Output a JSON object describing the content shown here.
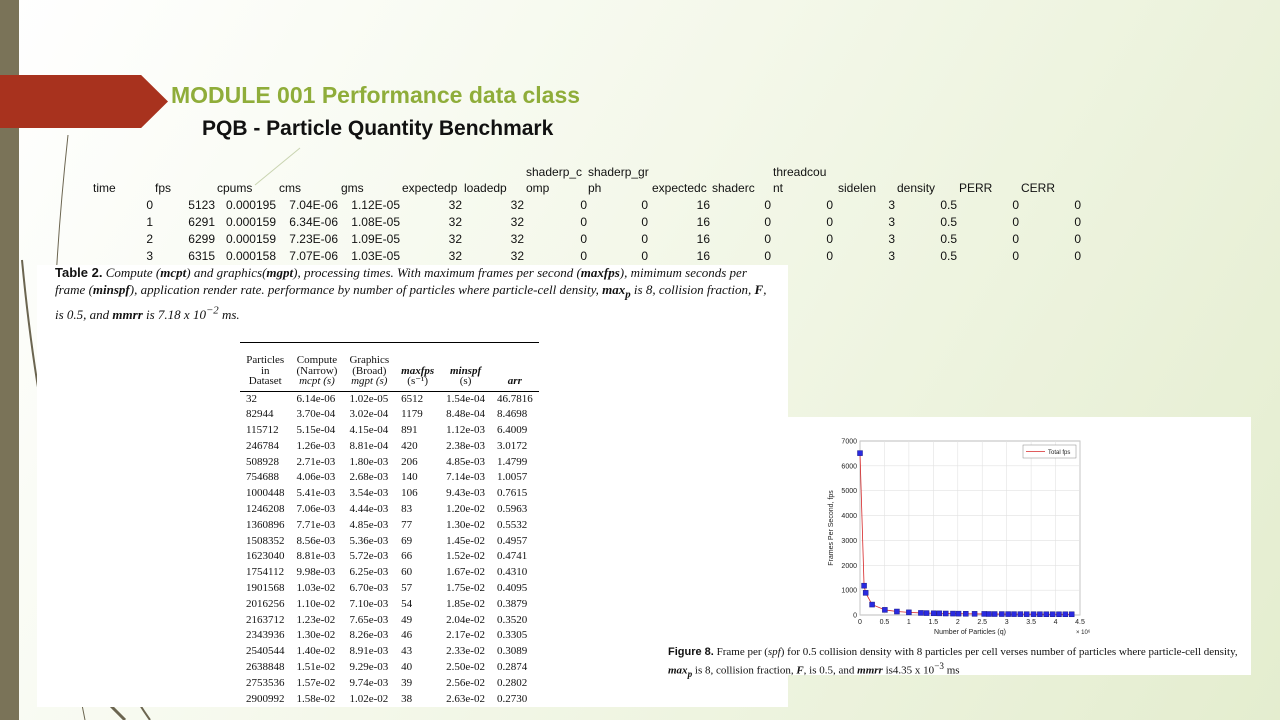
{
  "slide": {
    "title": "MODULE 001 Performance data class",
    "subtitle": "PQB - Particle Quantity Benchmark"
  },
  "grid": {
    "headers": [
      {
        "top": "",
        "bottom": "time"
      },
      {
        "top": "",
        "bottom": "fps"
      },
      {
        "top": "",
        "bottom": "cpums"
      },
      {
        "top": "",
        "bottom": "cms"
      },
      {
        "top": "",
        "bottom": "gms"
      },
      {
        "top": "",
        "bottom": "expectedp"
      },
      {
        "top": "",
        "bottom": "loadedp"
      },
      {
        "top": "shaderp_c",
        "bottom": "omp"
      },
      {
        "top": "shaderp_gr",
        "bottom": "ph"
      },
      {
        "top": "",
        "bottom": "expectedc"
      },
      {
        "top": "",
        "bottom": "shaderc"
      },
      {
        "top": "threadcou",
        "bottom": "nt"
      },
      {
        "top": "",
        "bottom": "sidelen"
      },
      {
        "top": "",
        "bottom": "density"
      },
      {
        "top": "",
        "bottom": "PERR"
      },
      {
        "top": "",
        "bottom": "CERR"
      }
    ],
    "rows": [
      [
        "0",
        "5123",
        "0.000195",
        "7.04E-06",
        "1.12E-05",
        "32",
        "32",
        "0",
        "0",
        "16",
        "0",
        "0",
        "3",
        "0.5",
        "0",
        "0"
      ],
      [
        "1",
        "6291",
        "0.000159",
        "6.34E-06",
        "1.08E-05",
        "32",
        "32",
        "0",
        "0",
        "16",
        "0",
        "0",
        "3",
        "0.5",
        "0",
        "0"
      ],
      [
        "2",
        "6299",
        "0.000159",
        "7.23E-06",
        "1.09E-05",
        "32",
        "32",
        "0",
        "0",
        "16",
        "0",
        "0",
        "3",
        "0.5",
        "0",
        "0"
      ],
      [
        "3",
        "6315",
        "0.000158",
        "7.07E-06",
        "1.03E-05",
        "32",
        "32",
        "0",
        "0",
        "16",
        "0",
        "0",
        "3",
        "0.5",
        "0",
        "0"
      ]
    ]
  },
  "table_panel": {
    "caption_label": "Table 2.",
    "caption_parts": {
      "p1": " Compute (",
      "mcpt": "mcpt",
      "p2": ") and graphics(",
      "mgpt": "mgpt",
      "p3": "), processing times. With maximum frames per second (",
      "maxfps": "maxfps",
      "p4": "), mimimum seconds per frame (",
      "minspf": "minspf",
      "p5": "), application render rate. performance by number of particles where particle-cell density, ",
      "maxp": "max",
      "maxp_sub": "p",
      "p6": " is 8, collision fraction, ",
      "F": "F",
      "p7": ", is 0.5, and ",
      "mmrr": "mmrr",
      "p8": " is 7.18 x 10",
      "exp": "−2",
      "p9": " ms."
    },
    "columns": [
      {
        "l1": "Particles",
        "l2": "in",
        "l3": "Dataset"
      },
      {
        "l1": "Compute",
        "l2": "(Narrow)",
        "l3": "mcpt (s)"
      },
      {
        "l1": "Graphics",
        "l2": "(Broad)",
        "l3": "mgpt (s)"
      },
      {
        "l1": "maxfps",
        "l2": "(s⁻¹)",
        "l3": ""
      },
      {
        "l1": "minspf",
        "l2": "(s)",
        "l3": ""
      },
      {
        "l1": "arr",
        "l2": "",
        "l3": ""
      }
    ],
    "rows": [
      [
        "32",
        "6.14e-06",
        "1.02e-05",
        "6512",
        "1.54e-04",
        "46.7816"
      ],
      [
        "82944",
        "3.70e-04",
        "3.02e-04",
        "1179",
        "8.48e-04",
        "8.4698"
      ],
      [
        "115712",
        "5.15e-04",
        "4.15e-04",
        "891",
        "1.12e-03",
        "6.4009"
      ],
      [
        "246784",
        "1.26e-03",
        "8.81e-04",
        "420",
        "2.38e-03",
        "3.0172"
      ],
      [
        "508928",
        "2.71e-03",
        "1.80e-03",
        "206",
        "4.85e-03",
        "1.4799"
      ],
      [
        "754688",
        "4.06e-03",
        "2.68e-03",
        "140",
        "7.14e-03",
        "1.0057"
      ],
      [
        "1000448",
        "5.41e-03",
        "3.54e-03",
        "106",
        "9.43e-03",
        "0.7615"
      ],
      [
        "1246208",
        "7.06e-03",
        "4.44e-03",
        "83",
        "1.20e-02",
        "0.5963"
      ],
      [
        "1360896",
        "7.71e-03",
        "4.85e-03",
        "77",
        "1.30e-02",
        "0.5532"
      ],
      [
        "1508352",
        "8.56e-03",
        "5.36e-03",
        "69",
        "1.45e-02",
        "0.4957"
      ],
      [
        "1623040",
        "8.81e-03",
        "5.72e-03",
        "66",
        "1.52e-02",
        "0.4741"
      ],
      [
        "1754112",
        "9.98e-03",
        "6.25e-03",
        "60",
        "1.67e-02",
        "0.4310"
      ],
      [
        "1901568",
        "1.03e-02",
        "6.70e-03",
        "57",
        "1.75e-02",
        "0.4095"
      ],
      [
        "2016256",
        "1.10e-02",
        "7.10e-03",
        "54",
        "1.85e-02",
        "0.3879"
      ],
      [
        "2163712",
        "1.23e-02",
        "7.65e-03",
        "49",
        "2.04e-02",
        "0.3520"
      ],
      [
        "2343936",
        "1.30e-02",
        "8.26e-03",
        "46",
        "2.17e-02",
        "0.3305"
      ],
      [
        "2540544",
        "1.40e-02",
        "8.91e-03",
        "43",
        "2.33e-02",
        "0.3089"
      ],
      [
        "2638848",
        "1.51e-02",
        "9.29e-03",
        "40",
        "2.50e-02",
        "0.2874"
      ],
      [
        "2753536",
        "1.57e-02",
        "9.74e-03",
        "39",
        "2.56e-02",
        "0.2802"
      ],
      [
        "2900992",
        "1.58e-02",
        "1.02e-02",
        "38",
        "2.63e-02",
        "0.2730"
      ]
    ]
  },
  "figure_panel": {
    "caption_label": "Figure 8.",
    "caption_parts": {
      "p1": " Frame per (",
      "spf": "spf",
      "p2": ") for 0.5 collision density with 8 particles per cell verses number of particles where particle-cell density, ",
      "maxp": "max",
      "maxp_sub": "p",
      "p3": " is 8, collision fraction, ",
      "F": "F",
      "p4": ", is 0.5, and ",
      "mmrr": "mmrr",
      "p5": " is4.35 x 10",
      "exp": "−3",
      "p6": " ms"
    }
  },
  "chart_data": {
    "type": "line",
    "xlabel": "Number of Particles (q)",
    "ylabel": "Frames Per Second, fps",
    "x_multiplier": "× 10⁶",
    "xlim": [
      0,
      4.5
    ],
    "ylim": [
      0,
      7000
    ],
    "xticks": [
      "0",
      "0.5",
      "1",
      "1.5",
      "2",
      "2.5",
      "3",
      "3.5",
      "4",
      "4.5"
    ],
    "yticks": [
      "0",
      "1000",
      "2000",
      "3000",
      "4000",
      "5000",
      "6000",
      "7000"
    ],
    "grid": true,
    "legend_position": "top-right",
    "series": [
      {
        "name": "Total fps",
        "color": "#d62728",
        "marker_color": "#2a2ae0",
        "x": [
          3e-05,
          0.083,
          0.116,
          0.247,
          0.509,
          0.755,
          1.0,
          1.246,
          1.361,
          1.508,
          1.623,
          1.754,
          1.902,
          2.016,
          2.164,
          2.344,
          2.541,
          2.639,
          2.754,
          2.901,
          3.03,
          3.15,
          3.28,
          3.41,
          3.55,
          3.68,
          3.81,
          3.94,
          4.07,
          4.2,
          4.33
        ],
        "y": [
          6512,
          1179,
          891,
          420,
          206,
          140,
          106,
          83,
          77,
          69,
          66,
          60,
          57,
          54,
          49,
          46,
          43,
          40,
          39,
          38,
          37,
          36,
          35,
          34,
          33,
          32,
          31,
          31,
          30,
          30,
          29
        ]
      }
    ]
  }
}
